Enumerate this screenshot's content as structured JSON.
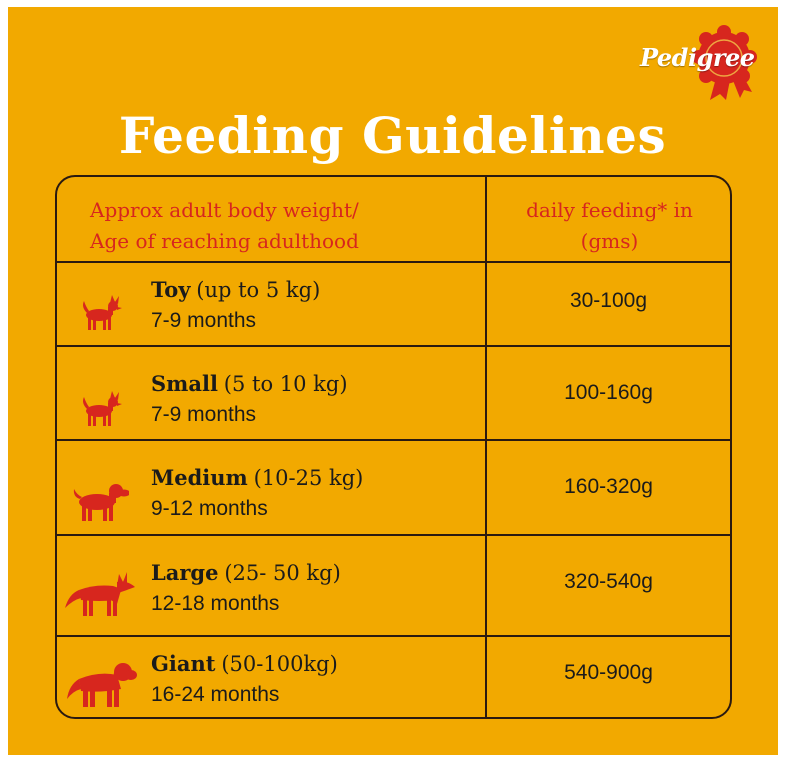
{
  "brand": {
    "name": "Pedigree",
    "accent": "#d7261e",
    "background": "#f2a900"
  },
  "title": "Feeding Guidelines",
  "table": {
    "headers": {
      "left_line1": "Approx adult body weight/",
      "left_line2": "Age of reaching adulthood",
      "right_line1": "daily feeding* in",
      "right_line2": "(gms)"
    },
    "rows": [
      {
        "size": "Toy",
        "range": "(up to 5 kg)",
        "age": "7-9 months",
        "feeding": "30-100g",
        "icon": "toy-dog-icon"
      },
      {
        "size": "Small",
        "range": "(5 to 10 kg)",
        "age": "7-9 months",
        "feeding": "100-160g",
        "icon": "small-dog-icon"
      },
      {
        "size": "Medium",
        "range": "(10-25 kg)",
        "age": "9-12 months",
        "feeding": "160-320g",
        "icon": "medium-dog-icon"
      },
      {
        "size": "Large",
        "range": "(25- 50 kg)",
        "age": "12-18 months",
        "feeding": "320-540g",
        "icon": "large-dog-icon"
      },
      {
        "size": "Giant",
        "range": "(50-100kg)",
        "age": "16-24 months",
        "feeding": "540-900g",
        "icon": "giant-dog-icon"
      }
    ]
  }
}
